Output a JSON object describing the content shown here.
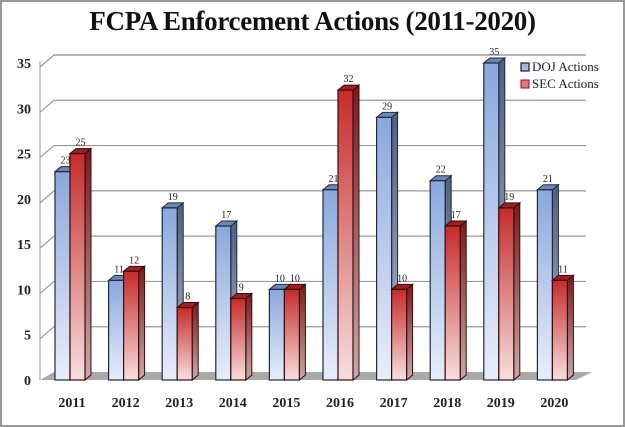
{
  "chart_data": {
    "type": "bar",
    "title": "FCPA Enforcement Actions (2011-2020)",
    "xlabel": "",
    "ylabel": "",
    "categories": [
      "2011",
      "2012",
      "2013",
      "2014",
      "2015",
      "2016",
      "2017",
      "2018",
      "2019",
      "2020"
    ],
    "series": [
      {
        "name": "DOJ Actions",
        "values": [
          23,
          11,
          19,
          17,
          10,
          21,
          29,
          22,
          35,
          21
        ],
        "color": "#7f9fd6"
      },
      {
        "name": "SEC Actions",
        "values": [
          25,
          12,
          8,
          9,
          10,
          32,
          10,
          17,
          19,
          11
        ],
        "color": "#c42a2a"
      }
    ],
    "ylim": [
      0,
      35
    ],
    "yticks": [
      "0",
      "5",
      "10",
      "15",
      "20",
      "25",
      "30",
      "35"
    ],
    "grid": true,
    "legend_position": "top-right",
    "data_labels": true,
    "style": "3d-column"
  }
}
